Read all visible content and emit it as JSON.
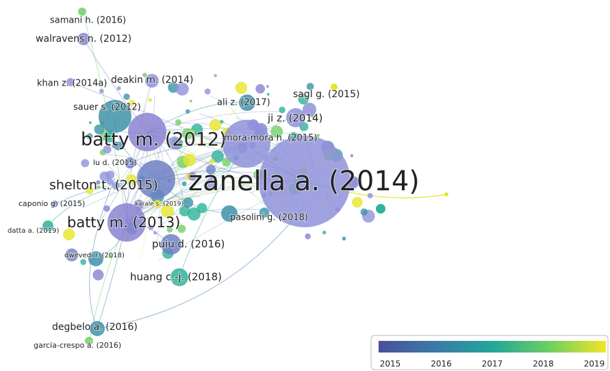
{
  "nodes": [
    {
      "label": "samani h. (2016)"
    },
    {
      "label": "walravens n. (2012)"
    },
    {
      "label": "khan z. (2014a)"
    },
    {
      "label": "deakin m. (2014)"
    },
    {
      "label": "sauer s. (2012)"
    },
    {
      "label": "ali z. (2017)"
    },
    {
      "label": "sagl g. (2015)"
    },
    {
      "label": "ji z. (2014)"
    },
    {
      "label": "batty m. (2012)"
    },
    {
      "label": "mora-mora h. (2015)"
    },
    {
      "label": "zanella a. (2014)"
    },
    {
      "label": "lu d. (2015)"
    },
    {
      "label": "shelton t. (2015)"
    },
    {
      "label": "caponio g. (2015)"
    },
    {
      "label": "karale s. (2019)"
    },
    {
      "label": "batty m. (2013)"
    },
    {
      "label": "pasolini g. (2018)"
    },
    {
      "label": "datta a. (2019)"
    },
    {
      "label": "puiu d. (2016)"
    },
    {
      "label": "dwevedi r. (2018)"
    },
    {
      "label": "huang c.-j. (2018)"
    },
    {
      "label": "degbelo a. (2016)"
    },
    {
      "label": "garcía-crespo á. (2016)"
    }
  ],
  "legend": {
    "ticks": [
      2015,
      2016,
      2017,
      2018,
      2019
    ]
  }
}
